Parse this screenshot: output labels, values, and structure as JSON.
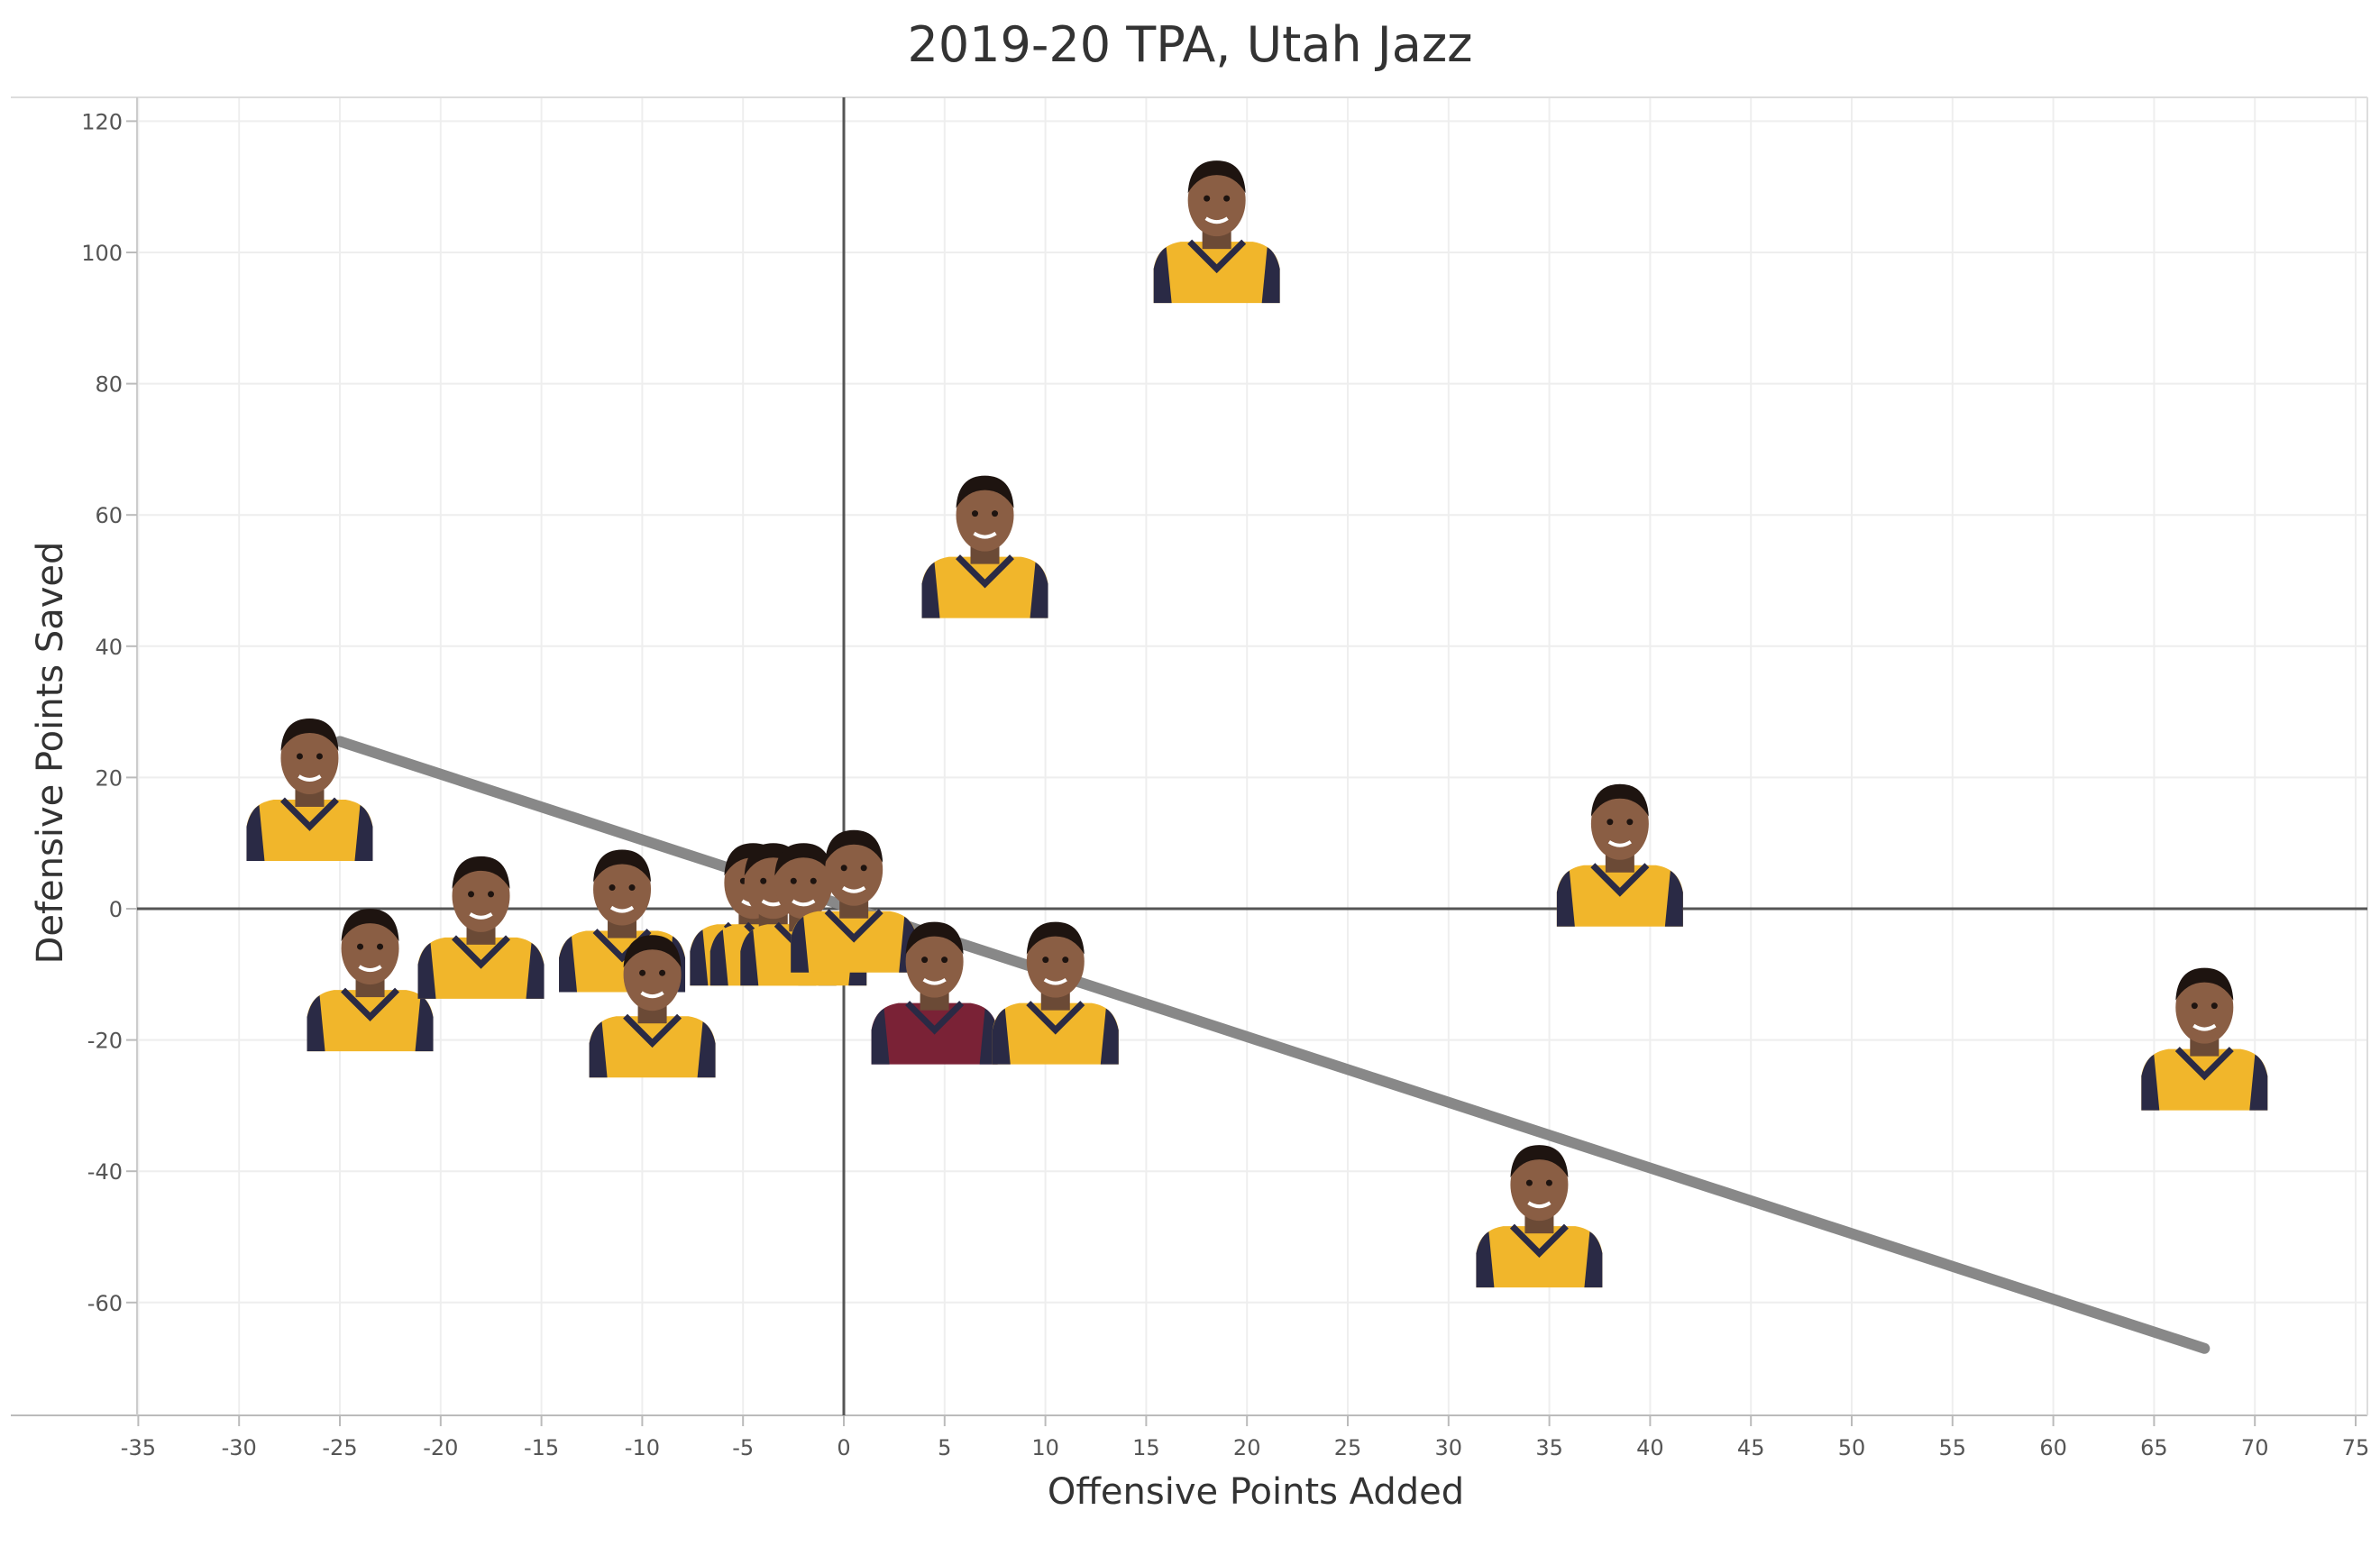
{
  "chart_data": {
    "type": "scatter",
    "title": "2019-20 TPA, Utah Jazz",
    "xlabel": "Offensive Points Added",
    "ylabel": "Defensive Points Saved",
    "xlim": [
      -35,
      75
    ],
    "ylim": [
      -75,
      123
    ],
    "x_ticks": [
      "-35",
      "-30",
      "-25",
      "-20",
      "-15",
      "-10",
      "-5",
      "0",
      "5",
      "10",
      "15",
      "20",
      "25",
      "30",
      "35",
      "40",
      "45",
      "50",
      "55",
      "60",
      "65",
      "70",
      "75"
    ],
    "y_ticks": [
      "120",
      "100",
      "80",
      "60",
      "40",
      "20",
      "0",
      "-20",
      "-40",
      "-60"
    ],
    "x_tick_values": [
      -35,
      -30,
      -25,
      -20,
      -15,
      -10,
      -5,
      0,
      5,
      10,
      15,
      20,
      25,
      30,
      35,
      40,
      45,
      50,
      55,
      60,
      65,
      70,
      75
    ],
    "y_tick_values": [
      120,
      100,
      80,
      60,
      40,
      20,
      0,
      -20,
      -40,
      -60
    ],
    "grid": true,
    "reference_lines": {
      "x": 0,
      "y": 0
    },
    "trend_line": {
      "x": [
        -25,
        67.5
      ],
      "y": [
        25.5,
        -67
      ]
    },
    "points": [
      {
        "x": 18.5,
        "y": 103,
        "jersey": "jazz"
      },
      {
        "x": 7,
        "y": 55,
        "jersey": "jazz"
      },
      {
        "x": -26.5,
        "y": 18,
        "jersey": "jazz"
      },
      {
        "x": 38.5,
        "y": 8,
        "jersey": "jazz"
      },
      {
        "x": -23.5,
        "y": -11,
        "jersey": "jazz"
      },
      {
        "x": -18,
        "y": -3,
        "jersey": "jazz"
      },
      {
        "x": -11,
        "y": -2,
        "jersey": "jazz"
      },
      {
        "x": -9.5,
        "y": -15,
        "jersey": "jazz"
      },
      {
        "x": -4.5,
        "y": -1,
        "jersey": "jazz"
      },
      {
        "x": -3.5,
        "y": -1,
        "jersey": "jazz"
      },
      {
        "x": -2,
        "y": -1,
        "jersey": "jazz"
      },
      {
        "x": 0.5,
        "y": 1,
        "jersey": "jazz"
      },
      {
        "x": 4.5,
        "y": -13,
        "jersey": "cavaliers"
      },
      {
        "x": 10.5,
        "y": -13,
        "jersey": "jazz"
      },
      {
        "x": 34.5,
        "y": -47,
        "jersey": "jazz"
      },
      {
        "x": 67.5,
        "y": -20,
        "jersey": "jazz"
      }
    ],
    "colors": {
      "jazz_jersey": "#F1B62B",
      "jazz_trim": "#2A2A45",
      "cavaliers_jersey": "#7A2236",
      "trend": "#888888",
      "grid": "#eeeeee",
      "axis": "#555555"
    }
  }
}
